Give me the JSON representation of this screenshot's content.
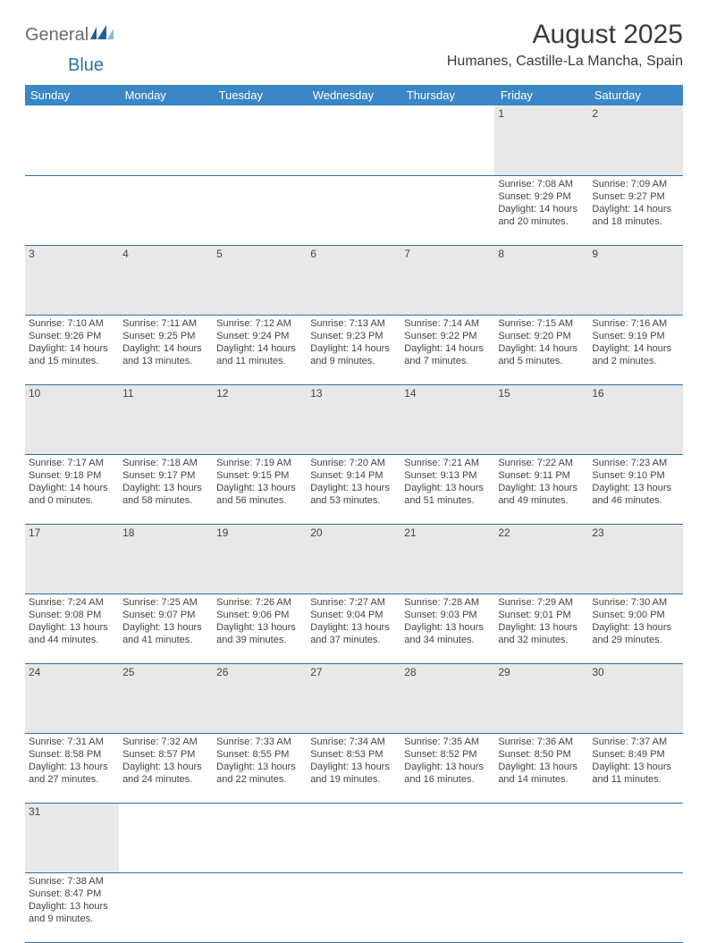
{
  "logo": {
    "part1": "General",
    "part2": "Blue"
  },
  "title": "August 2025",
  "location": "Humanes, Castille-La Mancha, Spain",
  "colors": {
    "header_bg": "#3a86c6",
    "header_fg": "#ffffff",
    "daynum_bg": "#e8e8e8",
    "rule": "#2f6fa8",
    "logo_gray": "#6b6b6b",
    "logo_blue": "#2f6fa8",
    "text": "#3a3a3a"
  },
  "day_headers": [
    "Sunday",
    "Monday",
    "Tuesday",
    "Wednesday",
    "Thursday",
    "Friday",
    "Saturday"
  ],
  "weeks": [
    [
      null,
      null,
      null,
      null,
      null,
      {
        "n": "1",
        "sunrise": "Sunrise: 7:08 AM",
        "sunset": "Sunset: 9:29 PM",
        "daylight": "Daylight: 14 hours and 20 minutes."
      },
      {
        "n": "2",
        "sunrise": "Sunrise: 7:09 AM",
        "sunset": "Sunset: 9:27 PM",
        "daylight": "Daylight: 14 hours and 18 minutes."
      }
    ],
    [
      {
        "n": "3",
        "sunrise": "Sunrise: 7:10 AM",
        "sunset": "Sunset: 9:26 PM",
        "daylight": "Daylight: 14 hours and 15 minutes."
      },
      {
        "n": "4",
        "sunrise": "Sunrise: 7:11 AM",
        "sunset": "Sunset: 9:25 PM",
        "daylight": "Daylight: 14 hours and 13 minutes."
      },
      {
        "n": "5",
        "sunrise": "Sunrise: 7:12 AM",
        "sunset": "Sunset: 9:24 PM",
        "daylight": "Daylight: 14 hours and 11 minutes."
      },
      {
        "n": "6",
        "sunrise": "Sunrise: 7:13 AM",
        "sunset": "Sunset: 9:23 PM",
        "daylight": "Daylight: 14 hours and 9 minutes."
      },
      {
        "n": "7",
        "sunrise": "Sunrise: 7:14 AM",
        "sunset": "Sunset: 9:22 PM",
        "daylight": "Daylight: 14 hours and 7 minutes."
      },
      {
        "n": "8",
        "sunrise": "Sunrise: 7:15 AM",
        "sunset": "Sunset: 9:20 PM",
        "daylight": "Daylight: 14 hours and 5 minutes."
      },
      {
        "n": "9",
        "sunrise": "Sunrise: 7:16 AM",
        "sunset": "Sunset: 9:19 PM",
        "daylight": "Daylight: 14 hours and 2 minutes."
      }
    ],
    [
      {
        "n": "10",
        "sunrise": "Sunrise: 7:17 AM",
        "sunset": "Sunset: 9:18 PM",
        "daylight": "Daylight: 14 hours and 0 minutes."
      },
      {
        "n": "11",
        "sunrise": "Sunrise: 7:18 AM",
        "sunset": "Sunset: 9:17 PM",
        "daylight": "Daylight: 13 hours and 58 minutes."
      },
      {
        "n": "12",
        "sunrise": "Sunrise: 7:19 AM",
        "sunset": "Sunset: 9:15 PM",
        "daylight": "Daylight: 13 hours and 56 minutes."
      },
      {
        "n": "13",
        "sunrise": "Sunrise: 7:20 AM",
        "sunset": "Sunset: 9:14 PM",
        "daylight": "Daylight: 13 hours and 53 minutes."
      },
      {
        "n": "14",
        "sunrise": "Sunrise: 7:21 AM",
        "sunset": "Sunset: 9:13 PM",
        "daylight": "Daylight: 13 hours and 51 minutes."
      },
      {
        "n": "15",
        "sunrise": "Sunrise: 7:22 AM",
        "sunset": "Sunset: 9:11 PM",
        "daylight": "Daylight: 13 hours and 49 minutes."
      },
      {
        "n": "16",
        "sunrise": "Sunrise: 7:23 AM",
        "sunset": "Sunset: 9:10 PM",
        "daylight": "Daylight: 13 hours and 46 minutes."
      }
    ],
    [
      {
        "n": "17",
        "sunrise": "Sunrise: 7:24 AM",
        "sunset": "Sunset: 9:08 PM",
        "daylight": "Daylight: 13 hours and 44 minutes."
      },
      {
        "n": "18",
        "sunrise": "Sunrise: 7:25 AM",
        "sunset": "Sunset: 9:07 PM",
        "daylight": "Daylight: 13 hours and 41 minutes."
      },
      {
        "n": "19",
        "sunrise": "Sunrise: 7:26 AM",
        "sunset": "Sunset: 9:06 PM",
        "daylight": "Daylight: 13 hours and 39 minutes."
      },
      {
        "n": "20",
        "sunrise": "Sunrise: 7:27 AM",
        "sunset": "Sunset: 9:04 PM",
        "daylight": "Daylight: 13 hours and 37 minutes."
      },
      {
        "n": "21",
        "sunrise": "Sunrise: 7:28 AM",
        "sunset": "Sunset: 9:03 PM",
        "daylight": "Daylight: 13 hours and 34 minutes."
      },
      {
        "n": "22",
        "sunrise": "Sunrise: 7:29 AM",
        "sunset": "Sunset: 9:01 PM",
        "daylight": "Daylight: 13 hours and 32 minutes."
      },
      {
        "n": "23",
        "sunrise": "Sunrise: 7:30 AM",
        "sunset": "Sunset: 9:00 PM",
        "daylight": "Daylight: 13 hours and 29 minutes."
      }
    ],
    [
      {
        "n": "24",
        "sunrise": "Sunrise: 7:31 AM",
        "sunset": "Sunset: 8:58 PM",
        "daylight": "Daylight: 13 hours and 27 minutes."
      },
      {
        "n": "25",
        "sunrise": "Sunrise: 7:32 AM",
        "sunset": "Sunset: 8:57 PM",
        "daylight": "Daylight: 13 hours and 24 minutes."
      },
      {
        "n": "26",
        "sunrise": "Sunrise: 7:33 AM",
        "sunset": "Sunset: 8:55 PM",
        "daylight": "Daylight: 13 hours and 22 minutes."
      },
      {
        "n": "27",
        "sunrise": "Sunrise: 7:34 AM",
        "sunset": "Sunset: 8:53 PM",
        "daylight": "Daylight: 13 hours and 19 minutes."
      },
      {
        "n": "28",
        "sunrise": "Sunrise: 7:35 AM",
        "sunset": "Sunset: 8:52 PM",
        "daylight": "Daylight: 13 hours and 16 minutes."
      },
      {
        "n": "29",
        "sunrise": "Sunrise: 7:36 AM",
        "sunset": "Sunset: 8:50 PM",
        "daylight": "Daylight: 13 hours and 14 minutes."
      },
      {
        "n": "30",
        "sunrise": "Sunrise: 7:37 AM",
        "sunset": "Sunset: 8:49 PM",
        "daylight": "Daylight: 13 hours and 11 minutes."
      }
    ],
    [
      {
        "n": "31",
        "sunrise": "Sunrise: 7:38 AM",
        "sunset": "Sunset: 8:47 PM",
        "daylight": "Daylight: 13 hours and 9 minutes."
      },
      null,
      null,
      null,
      null,
      null,
      null
    ]
  ]
}
